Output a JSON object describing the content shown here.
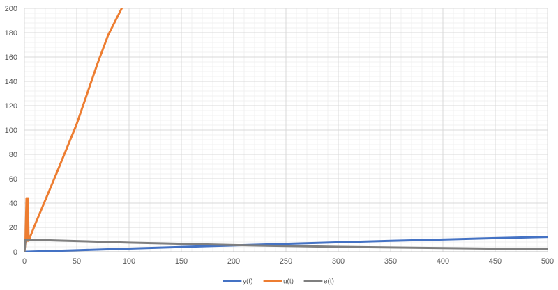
{
  "chart_data": {
    "type": "line",
    "title": "",
    "xlabel": "",
    "ylabel": "",
    "xlim": [
      0,
      500
    ],
    "ylim": [
      0,
      200
    ],
    "x_ticks": [
      0,
      50,
      100,
      150,
      200,
      250,
      300,
      350,
      400,
      450,
      500
    ],
    "y_ticks": [
      0,
      20,
      40,
      60,
      80,
      100,
      120,
      140,
      160,
      180,
      200
    ],
    "grid": "major and minor",
    "legend_position": "bottom",
    "series": [
      {
        "name": "y(t)",
        "color": "#4472C4",
        "points": [
          [
            0,
            0
          ],
          [
            2,
            0
          ],
          [
            50,
            1.2
          ],
          [
            100,
            2.6
          ],
          [
            150,
            3.9
          ],
          [
            200,
            5.2
          ],
          [
            250,
            6.5
          ],
          [
            300,
            7.8
          ],
          [
            350,
            9.0
          ],
          [
            400,
            10.1
          ],
          [
            450,
            11.2
          ],
          [
            500,
            12.2
          ]
        ]
      },
      {
        "name": "u(t)",
        "color": "#ED7D31",
        "points": [
          [
            0,
            0
          ],
          [
            1,
            8
          ],
          [
            2,
            44
          ],
          [
            2.6,
            9
          ],
          [
            3.3,
            44
          ],
          [
            4,
            9
          ],
          [
            10,
            22
          ],
          [
            30,
            63
          ],
          [
            50,
            105
          ],
          [
            70,
            155
          ],
          [
            80,
            178
          ],
          [
            93,
            200
          ]
        ]
      },
      {
        "name": "e(t)",
        "color": "#7F7F7F",
        "points": [
          [
            0,
            0
          ],
          [
            1,
            10
          ],
          [
            2,
            10
          ],
          [
            50,
            8.8
          ],
          [
            100,
            7.5
          ],
          [
            150,
            6.5
          ],
          [
            200,
            5.5
          ],
          [
            250,
            4.7
          ],
          [
            300,
            4.0
          ],
          [
            350,
            3.5
          ],
          [
            400,
            3.0
          ],
          [
            450,
            2.5
          ],
          [
            500,
            2.0
          ]
        ]
      }
    ]
  }
}
